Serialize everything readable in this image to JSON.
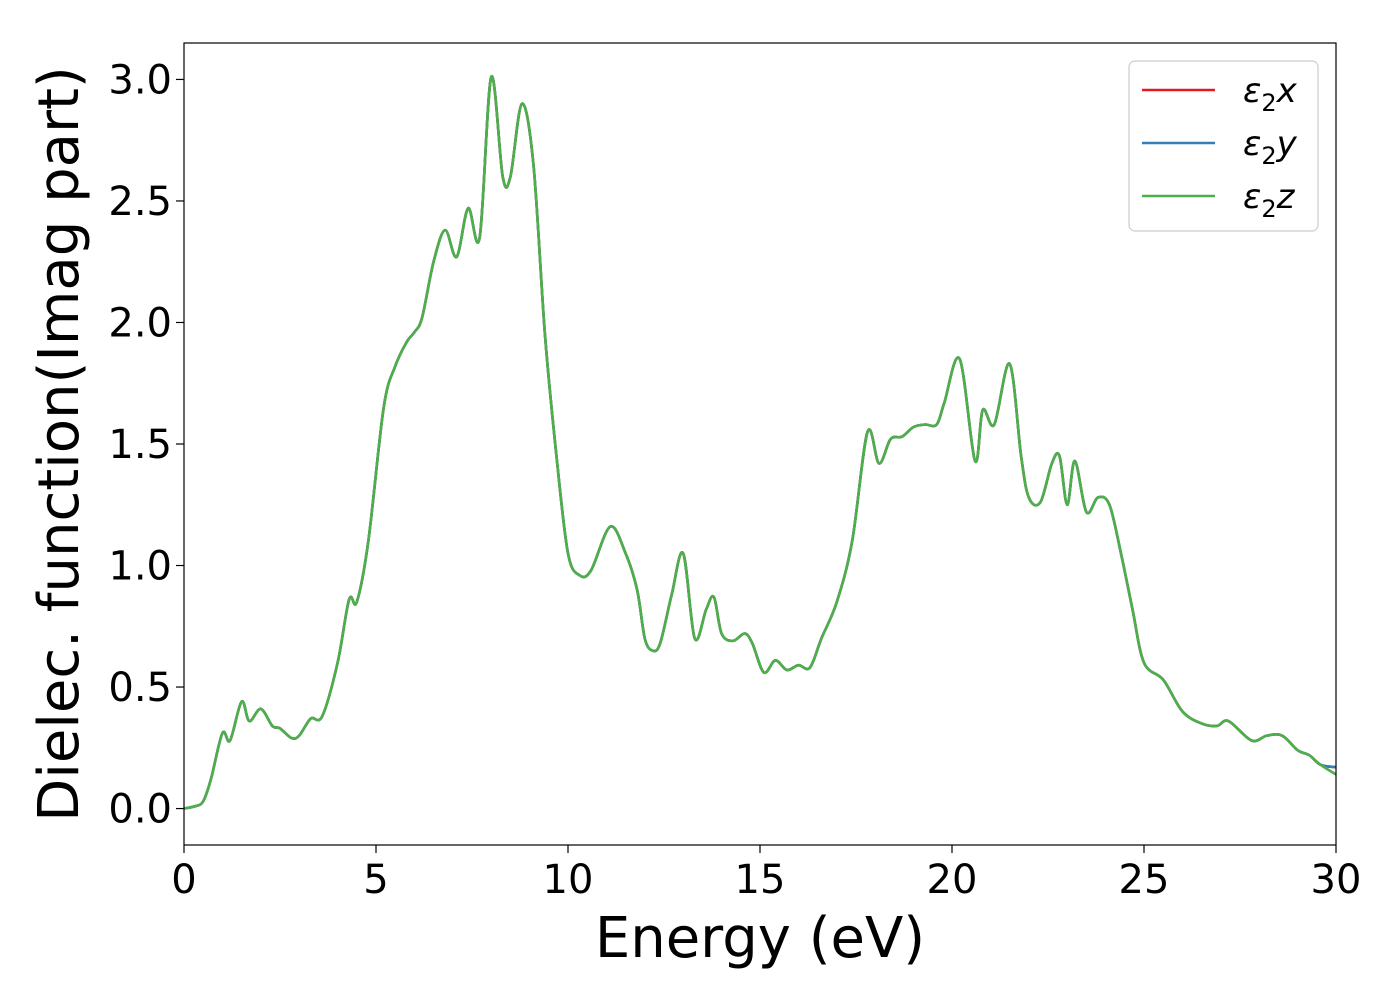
{
  "chart_data": {
    "type": "line",
    "title": "",
    "xlabel": "Energy (eV)",
    "ylabel": "Dielec. function(Imag part)",
    "xlim": [
      0,
      30
    ],
    "ylim": [
      -0.15,
      3.15
    ],
    "xticks": [
      0,
      5,
      10,
      15,
      20,
      25,
      30
    ],
    "xtick_labels": [
      "0",
      "5",
      "10",
      "15",
      "20",
      "25",
      "30"
    ],
    "yticks": [
      0.0,
      0.5,
      1.0,
      1.5,
      2.0,
      2.5,
      3.0
    ],
    "ytick_labels": [
      "0.0",
      "0.5",
      "1.0",
      "1.5",
      "2.0",
      "2.5",
      "3.0"
    ],
    "grid": false,
    "legend_position": "top-right",
    "x": [
      0,
      0.3,
      0.5,
      0.7,
      1.0,
      1.2,
      1.5,
      1.7,
      2.0,
      2.3,
      2.5,
      2.8,
      3.0,
      3.3,
      3.6,
      4.0,
      4.3,
      4.5,
      4.8,
      5.2,
      5.5,
      5.8,
      6.0,
      6.2,
      6.5,
      6.8,
      7.1,
      7.4,
      7.7,
      8.0,
      8.3,
      8.5,
      8.8,
      9.1,
      9.4,
      9.7,
      10.0,
      10.3,
      10.6,
      11.1,
      11.5,
      11.8,
      12.0,
      12.2,
      12.4,
      12.7,
      13.0,
      13.3,
      13.6,
      13.8,
      14.0,
      14.3,
      14.6,
      14.8,
      15.1,
      15.4,
      15.7,
      16.0,
      16.3,
      16.6,
      17.0,
      17.4,
      17.8,
      18.1,
      18.4,
      18.7,
      19.0,
      19.3,
      19.6,
      19.8,
      20.2,
      20.6,
      20.8,
      21.1,
      21.5,
      21.8,
      22.0,
      22.3,
      22.6,
      22.8,
      23.0,
      23.2,
      23.5,
      23.8,
      24.1,
      24.4,
      24.7,
      25.0,
      25.5,
      26.0,
      26.5,
      26.9,
      27.2,
      27.8,
      28.2,
      28.6,
      29.0,
      29.3,
      29.6,
      30.0
    ],
    "series": [
      {
        "name": "ε₂x",
        "color": "#e41a1c",
        "values": [
          0.0,
          0.01,
          0.03,
          0.12,
          0.31,
          0.28,
          0.44,
          0.36,
          0.41,
          0.34,
          0.33,
          0.29,
          0.3,
          0.37,
          0.38,
          0.6,
          0.86,
          0.85,
          1.1,
          1.65,
          1.82,
          1.92,
          1.96,
          2.02,
          2.25,
          2.38,
          2.27,
          2.47,
          2.35,
          3.01,
          2.6,
          2.6,
          2.9,
          2.65,
          1.95,
          1.45,
          1.05,
          0.96,
          0.98,
          1.16,
          1.05,
          0.9,
          0.7,
          0.65,
          0.68,
          0.88,
          1.05,
          0.7,
          0.82,
          0.87,
          0.72,
          0.69,
          0.72,
          0.68,
          0.56,
          0.61,
          0.57,
          0.59,
          0.58,
          0.7,
          0.85,
          1.1,
          1.55,
          1.42,
          1.52,
          1.53,
          1.57,
          1.58,
          1.58,
          1.67,
          1.85,
          1.43,
          1.64,
          1.58,
          1.83,
          1.45,
          1.28,
          1.26,
          1.42,
          1.45,
          1.25,
          1.43,
          1.22,
          1.28,
          1.25,
          1.05,
          0.82,
          0.6,
          0.53,
          0.4,
          0.35,
          0.34,
          0.36,
          0.28,
          0.3,
          0.3,
          0.24,
          0.22,
          0.18,
          0.17
        ]
      },
      {
        "name": "ε₂y",
        "color": "#377eb8",
        "values": [
          0.0,
          0.01,
          0.03,
          0.12,
          0.31,
          0.28,
          0.44,
          0.36,
          0.41,
          0.34,
          0.33,
          0.29,
          0.3,
          0.37,
          0.38,
          0.6,
          0.86,
          0.85,
          1.1,
          1.65,
          1.82,
          1.92,
          1.96,
          2.02,
          2.25,
          2.38,
          2.27,
          2.47,
          2.35,
          3.01,
          2.6,
          2.6,
          2.9,
          2.65,
          1.95,
          1.45,
          1.05,
          0.96,
          0.98,
          1.16,
          1.05,
          0.9,
          0.7,
          0.65,
          0.68,
          0.88,
          1.05,
          0.7,
          0.82,
          0.87,
          0.72,
          0.69,
          0.72,
          0.68,
          0.56,
          0.61,
          0.57,
          0.59,
          0.58,
          0.7,
          0.85,
          1.1,
          1.55,
          1.42,
          1.52,
          1.53,
          1.57,
          1.58,
          1.58,
          1.67,
          1.85,
          1.43,
          1.64,
          1.58,
          1.83,
          1.45,
          1.28,
          1.26,
          1.42,
          1.45,
          1.25,
          1.43,
          1.22,
          1.28,
          1.25,
          1.05,
          0.82,
          0.6,
          0.53,
          0.4,
          0.35,
          0.34,
          0.36,
          0.28,
          0.3,
          0.3,
          0.24,
          0.22,
          0.18,
          0.17
        ]
      },
      {
        "name": "ε₂z",
        "color": "#4daf4a",
        "values": [
          0.0,
          0.01,
          0.03,
          0.12,
          0.31,
          0.28,
          0.44,
          0.36,
          0.41,
          0.34,
          0.33,
          0.29,
          0.3,
          0.37,
          0.38,
          0.6,
          0.86,
          0.85,
          1.1,
          1.65,
          1.82,
          1.92,
          1.96,
          2.02,
          2.25,
          2.38,
          2.27,
          2.47,
          2.35,
          3.01,
          2.6,
          2.6,
          2.9,
          2.65,
          1.95,
          1.45,
          1.05,
          0.96,
          0.98,
          1.16,
          1.05,
          0.9,
          0.7,
          0.65,
          0.68,
          0.88,
          1.05,
          0.7,
          0.82,
          0.87,
          0.72,
          0.69,
          0.72,
          0.68,
          0.56,
          0.61,
          0.57,
          0.59,
          0.58,
          0.7,
          0.85,
          1.1,
          1.55,
          1.42,
          1.52,
          1.53,
          1.57,
          1.58,
          1.58,
          1.67,
          1.85,
          1.43,
          1.64,
          1.58,
          1.83,
          1.45,
          1.28,
          1.26,
          1.42,
          1.45,
          1.25,
          1.43,
          1.22,
          1.28,
          1.25,
          1.05,
          0.82,
          0.6,
          0.53,
          0.4,
          0.35,
          0.34,
          0.36,
          0.28,
          0.3,
          0.3,
          0.24,
          0.22,
          0.18,
          0.14
        ]
      }
    ],
    "legend": [
      {
        "base": "ε",
        "sub": "2",
        "var": "x"
      },
      {
        "base": "ε",
        "sub": "2",
        "var": "y"
      },
      {
        "base": "ε",
        "sub": "2",
        "var": "z"
      }
    ]
  }
}
